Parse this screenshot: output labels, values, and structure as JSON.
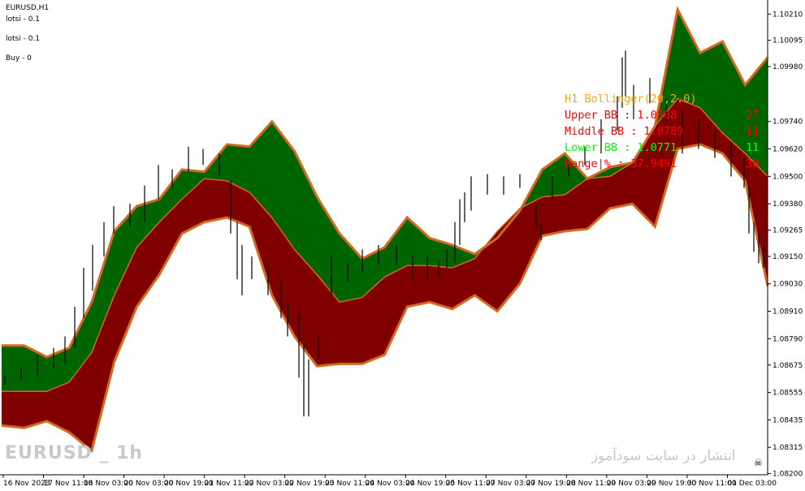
{
  "header": {
    "symbol": "EURUSD,H1",
    "lot1": "lotsi - 0.1",
    "lot2": "lotsi - 0.1",
    "buy": "Buy - 0"
  },
  "info_panel": {
    "title": "H1 Bollinger(20,2.0)",
    "upper": "Upper BB : 1.0808",
    "upper_right": "27",
    "middle": "Middle BB : 1.0789",
    "middle_right": "11",
    "lower": "Lower BB : 1.0771",
    "lower_right": "11",
    "range": "Range|% : 37.9491",
    "range_right": "30",
    "colors": {
      "title": "#ffa500",
      "upper": "#ff0000",
      "middle": "#ff0000",
      "lower": "#00ff00",
      "range": "#ff0000"
    }
  },
  "watermark": {
    "left": "EURUSD _ 1h",
    "right": "انتشار در سایت سودآموز",
    "icon": "skull-icon"
  },
  "colors": {
    "upper_band_fill": "#006400",
    "lower_band_fill": "#800000",
    "band_outline": "#d2691e",
    "candle": "#000000",
    "background": "#ffffff"
  },
  "chart_data": {
    "type": "line",
    "symbol": "EURUSD",
    "timeframe": "H1",
    "ylim": [
      1.08195,
      1.1025
    ],
    "y_ticks": [
      "1.10210",
      "1.10095",
      "1.09980",
      "1.09740",
      "1.09620",
      "1.09500",
      "1.09380",
      "1.09265",
      "1.09150",
      "1.09030",
      "1.08910",
      "1.08790",
      "1.08675",
      "1.08555",
      "1.08435",
      "1.08315",
      "1.08200"
    ],
    "x_ticks": [
      "16 Nov 2023",
      "17 Nov 11:00",
      "18 Nov 03:00",
      "20 Nov 03:00",
      "20 Nov 19:00",
      "21 Nov 11:00",
      "22 Nov 03:00",
      "22 Nov 19:00",
      "23 Nov 11:00",
      "24 Nov 03:00",
      "24 Nov 19:00",
      "25 Nov 11:00",
      "27 Nov 03:00",
      "27 Nov 19:00",
      "28 Nov 11:00",
      "29 Nov 03:00",
      "29 Nov 19:00",
      "30 Nov 11:00",
      "01 Dec 03:00"
    ],
    "series": [
      {
        "name": "Upper BB",
        "values": [
          1.0876,
          1.0876,
          1.0871,
          1.0875,
          1.0895,
          1.0926,
          1.0937,
          1.094,
          1.0953,
          1.0952,
          1.0964,
          1.0963,
          1.0974,
          1.0961,
          1.0941,
          1.0925,
          1.0914,
          1.0919,
          1.0932,
          1.0923,
          1.092,
          1.0916,
          1.0923,
          1.0935,
          1.0953,
          1.096,
          1.0949,
          1.0954,
          1.0956,
          1.0972,
          1.1023,
          1.1004,
          1.1009,
          1.099,
          1.1002
        ]
      },
      {
        "name": "Middle BB",
        "values": [
          1.0856,
          1.0856,
          1.0856,
          1.086,
          1.0873,
          1.0898,
          1.0919,
          1.093,
          1.094,
          1.0949,
          1.0948,
          1.0943,
          1.0932,
          1.0918,
          1.0907,
          1.0895,
          1.0897,
          1.0906,
          1.0911,
          1.0911,
          1.091,
          1.0914,
          1.0926,
          1.0936,
          1.0941,
          1.0942,
          1.0949,
          1.095,
          1.0956,
          1.0972,
          1.0984,
          1.098,
          1.0969,
          1.096,
          1.095
        ]
      },
      {
        "name": "Lower BB",
        "values": [
          1.0841,
          1.084,
          1.0843,
          1.0838,
          1.083,
          1.0869,
          1.0893,
          1.0907,
          1.0925,
          1.093,
          1.0932,
          1.0928,
          1.0898,
          1.088,
          1.0867,
          1.0868,
          1.0868,
          1.0872,
          1.0893,
          1.0895,
          1.0892,
          1.0898,
          1.0891,
          1.0903,
          1.0924,
          1.0926,
          1.0927,
          1.0936,
          1.0938,
          1.0928,
          1.0962,
          1.0964,
          1.096,
          1.0948,
          1.0902
        ]
      }
    ],
    "candles": [
      [
        6,
        1.0863,
        1.0859
      ],
      [
        26,
        1.0866,
        1.0861
      ],
      [
        46,
        1.0872,
        1.0863
      ],
      [
        66,
        1.0875,
        1.0866
      ],
      [
        80,
        1.088,
        1.0868
      ],
      [
        92,
        1.0893,
        1.0875
      ],
      [
        103,
        1.091,
        1.0888
      ],
      [
        114,
        1.092,
        1.09
      ],
      [
        128,
        1.093,
        1.0915
      ],
      [
        140,
        1.0937,
        1.0925
      ],
      [
        160,
        1.0938,
        1.0928
      ],
      [
        178,
        1.0946,
        1.093
      ],
      [
        195,
        1.0955,
        1.094
      ],
      [
        212,
        1.0953,
        1.0945
      ],
      [
        232,
        1.0963,
        1.0952
      ],
      [
        250,
        1.0962,
        1.0955
      ],
      [
        270,
        1.096,
        1.095
      ],
      [
        284,
        1.0948,
        1.0925
      ],
      [
        292,
        1.093,
        1.0905
      ],
      [
        298,
        1.092,
        1.0898
      ],
      [
        310,
        1.0915,
        1.0905
      ],
      [
        330,
        1.0912,
        1.0898
      ],
      [
        346,
        1.0905,
        1.0888
      ],
      [
        354,
        1.0895,
        1.088
      ],
      [
        368,
        1.089,
        1.0862
      ],
      [
        374,
        1.0877,
        1.0845
      ],
      [
        380,
        1.087,
        1.0845
      ],
      [
        392,
        1.088,
        1.087
      ],
      [
        408,
        1.0915,
        1.0898
      ],
      [
        428,
        1.0912,
        1.0904
      ],
      [
        446,
        1.0918,
        1.0908
      ],
      [
        466,
        1.092,
        1.0912
      ],
      [
        488,
        1.092,
        1.0911
      ],
      [
        508,
        1.0915,
        1.0905
      ],
      [
        526,
        1.0915,
        1.0905
      ],
      [
        540,
        1.0913,
        1.0906
      ],
      [
        550,
        1.0918,
        1.091
      ],
      [
        560,
        1.093,
        1.0912
      ],
      [
        566,
        1.094,
        1.092
      ],
      [
        572,
        1.0943,
        1.093
      ],
      [
        580,
        1.095,
        1.0935
      ],
      [
        600,
        1.0951,
        1.0942
      ],
      [
        620,
        1.095,
        1.0942
      ],
      [
        640,
        1.0951,
        1.0945
      ],
      [
        660,
        1.0938,
        1.0927
      ],
      [
        666,
        1.093,
        1.0922
      ],
      [
        680,
        1.095,
        1.094
      ],
      [
        700,
        1.0955,
        1.095
      ],
      [
        720,
        1.0963,
        1.0955
      ],
      [
        740,
        1.0975,
        1.096
      ],
      [
        760,
        1.0985,
        1.097
      ],
      [
        766,
        1.1002,
        1.098
      ],
      [
        770,
        1.1005,
        1.0985
      ],
      [
        780,
        1.099,
        1.0975
      ],
      [
        800,
        1.0993,
        1.0982
      ],
      [
        820,
        1.0984,
        1.0974
      ],
      [
        840,
        1.0978,
        1.096
      ],
      [
        860,
        1.0975,
        1.0962
      ],
      [
        880,
        1.097,
        1.0958
      ],
      [
        900,
        1.0965,
        1.095
      ],
      [
        916,
        1.0958,
        1.0945
      ],
      [
        922,
        1.0945,
        1.0925
      ],
      [
        928,
        1.093,
        1.0917
      ],
      [
        934,
        1.0925,
        1.0912
      ],
      [
        940,
        1.092,
        1.091
      ]
    ]
  }
}
